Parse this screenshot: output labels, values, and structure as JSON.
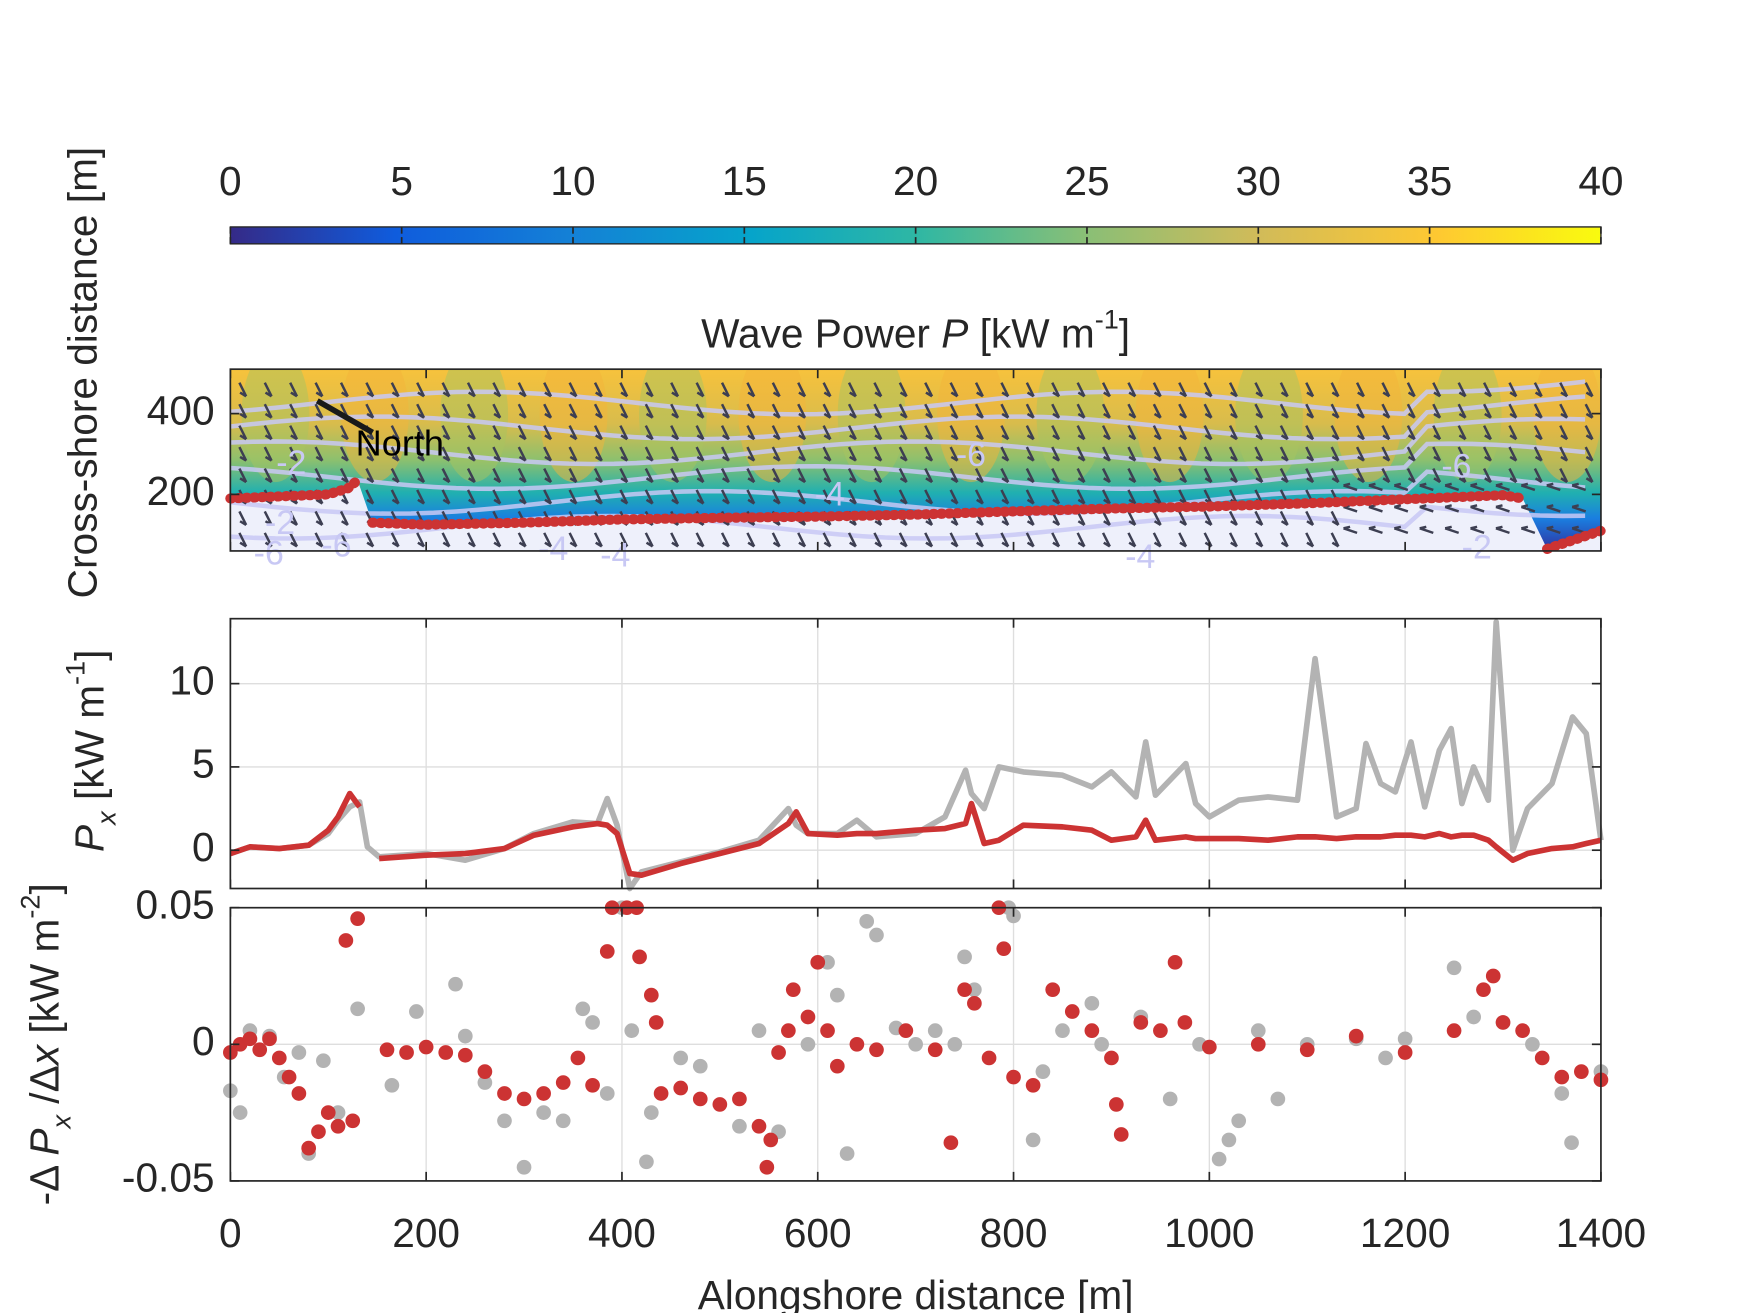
{
  "chart_data": [
    {
      "type": "contour",
      "title": [
        "Wave Power ",
        "P",
        " [kW m",
        "-1",
        "]"
      ],
      "ylabel": "Cross-shore distance [m]",
      "annotation": "North",
      "colorbar": {
        "clim": [
          0,
          40
        ],
        "ticks": [
          0,
          5,
          10,
          15,
          20,
          25,
          30,
          35,
          40
        ]
      },
      "contour_labels": [
        "-2",
        "-6",
        "-4",
        "-2",
        "-6",
        "-6",
        "-4",
        "-4",
        "-4",
        "-6",
        "-2"
      ],
      "xlim": [
        0,
        1400
      ],
      "xticks": [
        0,
        200,
        400,
        600,
        800,
        1000,
        1200,
        1400
      ],
      "ylim": [
        60,
        510
      ],
      "yticks": [
        200,
        400
      ],
      "grid": false,
      "series": [
        {
          "color": "#cc3333",
          "x": [
            0,
            50,
            100,
            120,
            130,
            135,
            145,
            200,
            300,
            400,
            500,
            600,
            700,
            800,
            900,
            1000,
            1100,
            1200,
            1300,
            1320,
            1330,
            1345,
            1400
          ],
          "values": [
            190,
            195,
            200,
            215,
            235,
            null,
            130,
            125,
            130,
            138,
            142,
            145,
            150,
            158,
            165,
            170,
            178,
            188,
            198,
            190,
            null,
            65,
            110
          ]
        }
      ]
    },
    {
      "type": "line",
      "ylabel": [
        "P",
        "x",
        " [kW m",
        "-1",
        "]"
      ],
      "xlim": [
        0,
        1400
      ],
      "xticks": [
        0,
        200,
        400,
        600,
        800,
        1000,
        1200,
        1400
      ],
      "ylim": [
        -2.3,
        13.9
      ],
      "yticks": [
        0,
        5,
        10
      ],
      "grid": true,
      "x": [
        0,
        20,
        50,
        80,
        100,
        110,
        122,
        132,
        140,
        152,
        200,
        240,
        280,
        310,
        350,
        375,
        385,
        395,
        408,
        420,
        460,
        500,
        540,
        570,
        578,
        590,
        620,
        640,
        660,
        700,
        730,
        751,
        757,
        770,
        785,
        810,
        850,
        880,
        900,
        925,
        935,
        945,
        976,
        986,
        1000,
        1030,
        1060,
        1090,
        1108,
        1130,
        1150,
        1160,
        1175,
        1190,
        1206,
        1220,
        1235,
        1247,
        1258,
        1270,
        1285,
        1293,
        1310,
        1325,
        1350,
        1371,
        1385,
        1400
      ],
      "series": [
        {
          "color": "#b3b3b3",
          "values": [
            -0.2,
            0.2,
            0.1,
            0.3,
            1.0,
            1.8,
            2.6,
            2.9,
            0.2,
            -0.4,
            -0.2,
            -0.6,
            0.1,
            1.0,
            1.7,
            1.6,
            3.1,
            1.5,
            -2.3,
            -1.3,
            -0.7,
            -0.1,
            0.6,
            2.5,
            1.5,
            1.0,
            1.0,
            1.8,
            0.8,
            1.0,
            2.0,
            4.8,
            3.4,
            2.5,
            5.0,
            4.7,
            4.5,
            3.8,
            4.7,
            3.2,
            6.5,
            3.3,
            5.2,
            2.8,
            2.0,
            3.0,
            3.2,
            3.0,
            11.5,
            2.0,
            2.5,
            6.4,
            4.0,
            3.5,
            6.5,
            2.6,
            6.0,
            7.3,
            2.8,
            5.0,
            3.0,
            13.7,
            0.0,
            2.5,
            4.0,
            8.0,
            7.0,
            0.6
          ]
        },
        {
          "color": "#cc3333",
          "values": [
            -0.2,
            0.2,
            0.1,
            0.3,
            1.2,
            2.0,
            3.4,
            2.6,
            null,
            -0.5,
            -0.3,
            -0.2,
            0.1,
            0.9,
            1.4,
            1.6,
            1.5,
            1.0,
            -1.4,
            -1.5,
            -0.8,
            -0.2,
            0.4,
            1.6,
            2.3,
            1.0,
            0.9,
            1.0,
            1.0,
            1.2,
            1.3,
            1.6,
            2.8,
            0.4,
            0.6,
            1.5,
            1.4,
            1.2,
            0.6,
            0.8,
            1.8,
            0.6,
            0.8,
            0.7,
            0.7,
            0.7,
            0.6,
            0.8,
            0.8,
            0.7,
            0.8,
            0.8,
            0.8,
            0.9,
            0.9,
            0.8,
            1.0,
            0.8,
            0.9,
            0.9,
            0.6,
            0.2,
            -0.6,
            -0.2,
            0.1,
            0.2,
            0.4,
            0.6
          ]
        }
      ]
    },
    {
      "type": "scatter",
      "ylabel": [
        "-Δ ",
        "P",
        "x",
        " /Δ",
        "x",
        "  [kW m",
        "-2",
        "]"
      ],
      "xlabel": "Alongshore distance [m]",
      "xlim": [
        0,
        1400
      ],
      "xticks": [
        0,
        200,
        400,
        600,
        800,
        1000,
        1200,
        1400
      ],
      "ylim": [
        -0.05,
        0.05
      ],
      "yticks": [
        {
          "value": -0.05,
          "label": "-0.05"
        },
        0,
        0.05
      ],
      "grid": true,
      "series": [
        {
          "color": "#b3b3b3",
          "x": [
            0,
            10,
            20,
            40,
            55,
            70,
            80,
            95,
            110,
            130,
            165,
            190,
            230,
            240,
            260,
            280,
            300,
            320,
            340,
            360,
            370,
            385,
            400,
            410,
            425,
            430,
            460,
            480,
            520,
            540,
            560,
            590,
            610,
            620,
            630,
            650,
            660,
            680,
            700,
            720,
            740,
            750,
            760,
            795,
            800,
            820,
            830,
            850,
            880,
            890,
            930,
            960,
            990,
            1010,
            1020,
            1030,
            1050,
            1070,
            1100,
            1150,
            1180,
            1200,
            1250,
            1270,
            1300,
            1330,
            1360,
            1370,
            1400
          ],
          "values": [
            -0.017,
            -0.025,
            0.005,
            0.003,
            -0.012,
            -0.003,
            -0.04,
            -0.006,
            -0.025,
            0.013,
            -0.015,
            0.012,
            0.022,
            0.003,
            -0.014,
            -0.028,
            -0.045,
            -0.025,
            -0.028,
            0.013,
            0.008,
            -0.018,
            0.05,
            0.005,
            -0.043,
            -0.025,
            -0.005,
            -0.008,
            -0.03,
            0.005,
            -0.032,
            0.0,
            0.03,
            0.018,
            -0.04,
            0.045,
            0.04,
            0.006,
            0.0,
            0.005,
            0.0,
            0.032,
            0.02,
            0.05,
            0.047,
            -0.035,
            -0.01,
            0.005,
            0.015,
            0.0,
            0.01,
            -0.02,
            0.0,
            -0.042,
            -0.035,
            -0.028,
            0.005,
            -0.02,
            0.0,
            0.002,
            -0.005,
            0.002,
            0.028,
            0.01,
            0.008,
            0.0,
            -0.018,
            -0.036,
            -0.01
          ]
        },
        {
          "color": "#cc3333",
          "x": [
            0,
            10,
            20,
            30,
            40,
            50,
            60,
            70,
            80,
            90,
            100,
            110,
            118,
            125,
            130,
            160,
            180,
            200,
            220,
            240,
            260,
            280,
            300,
            320,
            340,
            355,
            370,
            385,
            390,
            405,
            415,
            418,
            430,
            435,
            440,
            460,
            480,
            500,
            520,
            540,
            548,
            552,
            560,
            570,
            575,
            590,
            600,
            610,
            620,
            640,
            660,
            690,
            720,
            736,
            750,
            760,
            775,
            785,
            790,
            800,
            820,
            840,
            860,
            880,
            900,
            905,
            910,
            930,
            950,
            965,
            975,
            1000,
            1050,
            1100,
            1150,
            1200,
            1250,
            1280,
            1290,
            1300,
            1320,
            1340,
            1360,
            1380,
            1400
          ],
          "values": [
            -0.003,
            0.0,
            0.002,
            -0.002,
            0.002,
            -0.005,
            -0.012,
            -0.018,
            -0.038,
            -0.032,
            -0.025,
            -0.03,
            0.038,
            -0.028,
            0.046,
            -0.002,
            -0.003,
            -0.001,
            -0.003,
            -0.004,
            -0.01,
            -0.018,
            -0.02,
            -0.018,
            -0.014,
            -0.005,
            -0.015,
            0.034,
            0.05,
            0.05,
            0.05,
            0.032,
            0.018,
            0.008,
            -0.018,
            -0.016,
            -0.02,
            -0.022,
            -0.02,
            -0.03,
            -0.045,
            -0.035,
            -0.003,
            0.005,
            0.02,
            0.01,
            0.03,
            0.005,
            -0.008,
            0.0,
            -0.002,
            0.005,
            -0.002,
            -0.036,
            0.02,
            0.015,
            -0.005,
            0.05,
            0.035,
            -0.012,
            -0.015,
            0.02,
            0.012,
            0.005,
            -0.005,
            -0.022,
            -0.033,
            0.008,
            0.005,
            0.03,
            0.008,
            -0.001,
            0.0,
            -0.002,
            0.003,
            -0.003,
            0.005,
            0.02,
            0.025,
            0.008,
            0.005,
            -0.005,
            -0.012,
            -0.01,
            -0.013
          ]
        }
      ]
    }
  ]
}
